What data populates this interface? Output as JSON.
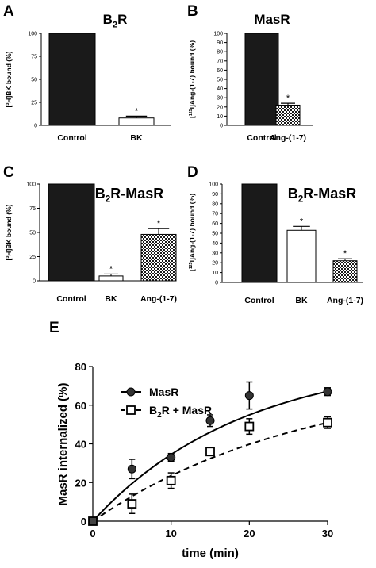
{
  "chart_data": [
    {
      "panel_label": "A",
      "type": "bar",
      "title": "B2R",
      "ylabel": "[3H]BK bound (%)",
      "ylim": [
        0,
        100
      ],
      "yticks": [
        "0",
        "25",
        "50",
        "75",
        "100"
      ],
      "categories": [
        "Control",
        "BK"
      ],
      "values": [
        100,
        8
      ],
      "errors": [
        0,
        2
      ],
      "significance": [
        "",
        "*"
      ],
      "bar_fills": [
        "solid",
        "open"
      ]
    },
    {
      "panel_label": "B",
      "type": "bar",
      "title": "MasR",
      "ylabel": "[125I]Ang-(1-7) bound (%)",
      "ylim": [
        0,
        100
      ],
      "yticks": [
        "0",
        "10",
        "20",
        "30",
        "40",
        "50",
        "60",
        "70",
        "80",
        "90",
        "100"
      ],
      "categories": [
        "Control",
        "Ang-(1-7)"
      ],
      "values": [
        100,
        22
      ],
      "errors": [
        0,
        2
      ],
      "significance": [
        "",
        "*"
      ],
      "bar_fills": [
        "solid",
        "checkered"
      ]
    },
    {
      "panel_label": "C",
      "type": "bar",
      "title": "B2R-MasR",
      "ylabel": "[3H]BK bound (%)",
      "ylim": [
        0,
        100
      ],
      "yticks": [
        "0",
        "25",
        "50",
        "75",
        "100"
      ],
      "categories": [
        "Control",
        "BK",
        "Ang-(1-7)"
      ],
      "values": [
        100,
        5,
        48
      ],
      "errors": [
        0,
        2,
        6
      ],
      "significance": [
        "",
        "*",
        "*"
      ],
      "bar_fills": [
        "solid",
        "open",
        "checkered"
      ]
    },
    {
      "panel_label": "D",
      "type": "bar",
      "title": "B2R-MasR",
      "ylabel": "[125I]Ang-(1-7) bound (%)",
      "ylim": [
        0,
        100
      ],
      "yticks": [
        "0",
        "10",
        "20",
        "30",
        "40",
        "50",
        "60",
        "70",
        "80",
        "90",
        "100"
      ],
      "categories": [
        "Control",
        "BK",
        "Ang-(1-7)"
      ],
      "values": [
        100,
        53,
        22
      ],
      "errors": [
        0,
        4,
        2
      ],
      "significance": [
        "",
        "*",
        "*"
      ],
      "bar_fills": [
        "solid",
        "open",
        "checkered"
      ]
    },
    {
      "panel_label": "E",
      "type": "scatter",
      "xlabel": "time (min)",
      "ylabel": "MasR internalized (%)",
      "xlim": [
        0,
        30
      ],
      "ylim": [
        0,
        80
      ],
      "xticks": [
        "0",
        "10",
        "20",
        "30"
      ],
      "yticks": [
        "0",
        "20",
        "40",
        "60",
        "80"
      ],
      "legend_position": "top-left",
      "x": [
        0,
        5,
        10,
        15,
        20,
        30
      ],
      "series": [
        {
          "name": "MasR",
          "marker": "filled-circle",
          "line": "solid",
          "values": [
            0,
            27,
            33,
            52,
            65,
            67
          ],
          "errors": [
            0,
            5,
            2,
            3,
            7,
            2
          ]
        },
        {
          "name": "B2R + MasR",
          "marker": "open-square",
          "line": "dashed",
          "values": [
            0,
            9,
            21,
            36,
            49,
            51
          ],
          "errors": [
            0,
            5,
            4,
            2,
            4,
            3
          ]
        }
      ]
    }
  ]
}
